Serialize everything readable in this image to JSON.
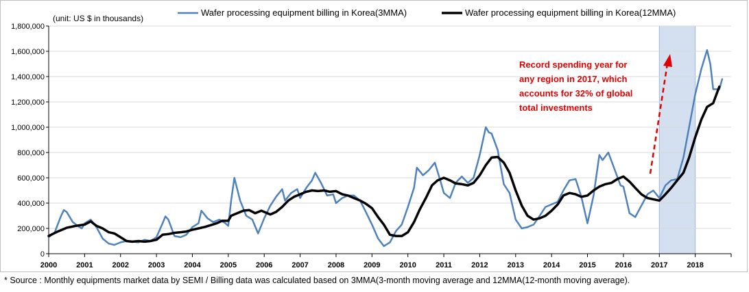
{
  "chart_data": {
    "type": "line",
    "unit_label": "(unit: US $ in thousands)",
    "xlabel": "",
    "ylabel": "",
    "ylim": [
      0,
      1800000
    ],
    "y_ticks": [
      0,
      200000,
      400000,
      600000,
      800000,
      1000000,
      1200000,
      1400000,
      1600000,
      1800000
    ],
    "y_tick_labels": [
      "0",
      "200,000",
      "400,000",
      "600,000",
      "800,000",
      "1,000,000",
      "1,200,000",
      "1,400,000",
      "1,600,000",
      "1,800,000"
    ],
    "xlim": [
      2000,
      2019
    ],
    "x_ticks": [
      2000,
      2001,
      2002,
      2003,
      2004,
      2005,
      2006,
      2007,
      2008,
      2009,
      2010,
      2011,
      2012,
      2013,
      2014,
      2015,
      2016,
      2017,
      2018
    ],
    "x_tick_labels": [
      "2000",
      "2001",
      "2002",
      "2003",
      "2004",
      "2005",
      "2006",
      "2007",
      "2008",
      "2009",
      "2010",
      "2011",
      "2012",
      "2013",
      "2014",
      "2015",
      "2016",
      "2017",
      "2018"
    ],
    "grid": "horizontal",
    "legend_position": "top",
    "highlight_region": [
      2017,
      2018
    ],
    "series": [
      {
        "name": "Wafer processing equipment billing in Korea(3MMA)",
        "color": "#4f81bd",
        "points": [
          [
            2000.0,
            130000
          ],
          [
            2000.17,
            170000
          ],
          [
            2000.33,
            290000
          ],
          [
            2000.42,
            345000
          ],
          [
            2000.5,
            330000
          ],
          [
            2000.67,
            250000
          ],
          [
            2000.83,
            215000
          ],
          [
            2000.92,
            200000
          ],
          [
            2001.0,
            240000
          ],
          [
            2001.17,
            270000
          ],
          [
            2001.33,
            210000
          ],
          [
            2001.5,
            120000
          ],
          [
            2001.67,
            80000
          ],
          [
            2001.83,
            70000
          ],
          [
            2002.0,
            90000
          ],
          [
            2002.17,
            100000
          ],
          [
            2002.33,
            95000
          ],
          [
            2002.5,
            90000
          ],
          [
            2002.67,
            110000
          ],
          [
            2002.83,
            100000
          ],
          [
            2003.0,
            130000
          ],
          [
            2003.17,
            240000
          ],
          [
            2003.25,
            295000
          ],
          [
            2003.33,
            270000
          ],
          [
            2003.5,
            140000
          ],
          [
            2003.67,
            130000
          ],
          [
            2003.83,
            150000
          ],
          [
            2004.0,
            210000
          ],
          [
            2004.17,
            240000
          ],
          [
            2004.25,
            340000
          ],
          [
            2004.42,
            280000
          ],
          [
            2004.58,
            250000
          ],
          [
            2004.75,
            270000
          ],
          [
            2004.92,
            240000
          ],
          [
            2005.0,
            220000
          ],
          [
            2005.08,
            420000
          ],
          [
            2005.17,
            600000
          ],
          [
            2005.33,
            420000
          ],
          [
            2005.5,
            300000
          ],
          [
            2005.67,
            270000
          ],
          [
            2005.83,
            160000
          ],
          [
            2006.0,
            280000
          ],
          [
            2006.17,
            380000
          ],
          [
            2006.33,
            450000
          ],
          [
            2006.5,
            510000
          ],
          [
            2006.58,
            420000
          ],
          [
            2006.75,
            480000
          ],
          [
            2006.92,
            510000
          ],
          [
            2007.0,
            440000
          ],
          [
            2007.17,
            520000
          ],
          [
            2007.33,
            580000
          ],
          [
            2007.42,
            640000
          ],
          [
            2007.58,
            560000
          ],
          [
            2007.75,
            460000
          ],
          [
            2007.92,
            470000
          ],
          [
            2008.0,
            400000
          ],
          [
            2008.17,
            440000
          ],
          [
            2008.33,
            460000
          ],
          [
            2008.5,
            460000
          ],
          [
            2008.67,
            420000
          ],
          [
            2008.83,
            330000
          ],
          [
            2009.0,
            230000
          ],
          [
            2009.17,
            120000
          ],
          [
            2009.33,
            60000
          ],
          [
            2009.5,
            90000
          ],
          [
            2009.67,
            180000
          ],
          [
            2009.83,
            230000
          ],
          [
            2010.0,
            370000
          ],
          [
            2010.17,
            520000
          ],
          [
            2010.25,
            680000
          ],
          [
            2010.42,
            620000
          ],
          [
            2010.58,
            660000
          ],
          [
            2010.75,
            720000
          ],
          [
            2010.92,
            560000
          ],
          [
            2011.0,
            480000
          ],
          [
            2011.17,
            440000
          ],
          [
            2011.33,
            560000
          ],
          [
            2011.5,
            610000
          ],
          [
            2011.67,
            560000
          ],
          [
            2011.83,
            600000
          ],
          [
            2012.0,
            780000
          ],
          [
            2012.17,
            1000000
          ],
          [
            2012.25,
            960000
          ],
          [
            2012.33,
            950000
          ],
          [
            2012.5,
            820000
          ],
          [
            2012.67,
            550000
          ],
          [
            2012.83,
            480000
          ],
          [
            2013.0,
            270000
          ],
          [
            2013.17,
            200000
          ],
          [
            2013.33,
            210000
          ],
          [
            2013.5,
            230000
          ],
          [
            2013.67,
            300000
          ],
          [
            2013.83,
            370000
          ],
          [
            2014.0,
            390000
          ],
          [
            2014.17,
            410000
          ],
          [
            2014.33,
            500000
          ],
          [
            2014.5,
            580000
          ],
          [
            2014.67,
            590000
          ],
          [
            2014.83,
            450000
          ],
          [
            2015.0,
            240000
          ],
          [
            2015.17,
            460000
          ],
          [
            2015.33,
            780000
          ],
          [
            2015.42,
            740000
          ],
          [
            2015.58,
            800000
          ],
          [
            2015.75,
            670000
          ],
          [
            2015.92,
            540000
          ],
          [
            2016.0,
            530000
          ],
          [
            2016.17,
            320000
          ],
          [
            2016.33,
            290000
          ],
          [
            2016.5,
            380000
          ],
          [
            2016.67,
            470000
          ],
          [
            2016.83,
            500000
          ],
          [
            2017.0,
            440000
          ],
          [
            2017.17,
            540000
          ],
          [
            2017.33,
            580000
          ],
          [
            2017.5,
            590000
          ],
          [
            2017.67,
            760000
          ],
          [
            2017.83,
            1000000
          ],
          [
            2018.0,
            1260000
          ],
          [
            2018.17,
            1460000
          ],
          [
            2018.33,
            1610000
          ],
          [
            2018.42,
            1500000
          ],
          [
            2018.5,
            1300000
          ],
          [
            2018.67,
            1300000
          ],
          [
            2018.75,
            1380000
          ]
        ]
      },
      {
        "name": "Wafer processing equipment billing in Korea(12MMA)",
        "color": "#000000",
        "points": [
          [
            2000.0,
            140000
          ],
          [
            2000.25,
            175000
          ],
          [
            2000.5,
            205000
          ],
          [
            2000.75,
            220000
          ],
          [
            2001.0,
            230000
          ],
          [
            2001.17,
            255000
          ],
          [
            2001.33,
            220000
          ],
          [
            2001.5,
            200000
          ],
          [
            2001.67,
            170000
          ],
          [
            2001.83,
            160000
          ],
          [
            2002.0,
            130000
          ],
          [
            2002.17,
            100000
          ],
          [
            2002.33,
            95000
          ],
          [
            2002.5,
            100000
          ],
          [
            2002.67,
            95000
          ],
          [
            2002.83,
            100000
          ],
          [
            2003.0,
            110000
          ],
          [
            2003.17,
            150000
          ],
          [
            2003.33,
            155000
          ],
          [
            2003.5,
            165000
          ],
          [
            2003.67,
            170000
          ],
          [
            2003.83,
            175000
          ],
          [
            2004.0,
            190000
          ],
          [
            2004.17,
            200000
          ],
          [
            2004.33,
            210000
          ],
          [
            2004.5,
            225000
          ],
          [
            2004.67,
            240000
          ],
          [
            2004.83,
            260000
          ],
          [
            2005.0,
            260000
          ],
          [
            2005.08,
            300000
          ],
          [
            2005.25,
            320000
          ],
          [
            2005.42,
            340000
          ],
          [
            2005.58,
            345000
          ],
          [
            2005.75,
            320000
          ],
          [
            2005.92,
            340000
          ],
          [
            2006.0,
            330000
          ],
          [
            2006.17,
            310000
          ],
          [
            2006.33,
            330000
          ],
          [
            2006.5,
            370000
          ],
          [
            2006.67,
            420000
          ],
          [
            2006.83,
            450000
          ],
          [
            2007.0,
            470000
          ],
          [
            2007.17,
            490000
          ],
          [
            2007.33,
            500000
          ],
          [
            2007.5,
            495000
          ],
          [
            2007.67,
            500000
          ],
          [
            2007.83,
            490000
          ],
          [
            2008.0,
            495000
          ],
          [
            2008.17,
            470000
          ],
          [
            2008.33,
            460000
          ],
          [
            2008.5,
            440000
          ],
          [
            2008.67,
            420000
          ],
          [
            2008.83,
            395000
          ],
          [
            2009.0,
            360000
          ],
          [
            2009.17,
            290000
          ],
          [
            2009.33,
            230000
          ],
          [
            2009.5,
            150000
          ],
          [
            2009.67,
            140000
          ],
          [
            2009.83,
            140000
          ],
          [
            2010.0,
            170000
          ],
          [
            2010.17,
            250000
          ],
          [
            2010.33,
            350000
          ],
          [
            2010.5,
            440000
          ],
          [
            2010.67,
            540000
          ],
          [
            2010.83,
            580000
          ],
          [
            2011.0,
            600000
          ],
          [
            2011.17,
            580000
          ],
          [
            2011.33,
            555000
          ],
          [
            2011.5,
            550000
          ],
          [
            2011.67,
            540000
          ],
          [
            2011.83,
            560000
          ],
          [
            2012.0,
            620000
          ],
          [
            2012.17,
            700000
          ],
          [
            2012.33,
            760000
          ],
          [
            2012.5,
            765000
          ],
          [
            2012.67,
            720000
          ],
          [
            2012.83,
            640000
          ],
          [
            2013.0,
            500000
          ],
          [
            2013.17,
            380000
          ],
          [
            2013.33,
            300000
          ],
          [
            2013.5,
            270000
          ],
          [
            2013.67,
            280000
          ],
          [
            2013.83,
            300000
          ],
          [
            2014.0,
            340000
          ],
          [
            2014.17,
            390000
          ],
          [
            2014.33,
            460000
          ],
          [
            2014.5,
            480000
          ],
          [
            2014.67,
            470000
          ],
          [
            2014.83,
            450000
          ],
          [
            2015.0,
            460000
          ],
          [
            2015.17,
            500000
          ],
          [
            2015.33,
            530000
          ],
          [
            2015.5,
            550000
          ],
          [
            2015.67,
            560000
          ],
          [
            2015.83,
            590000
          ],
          [
            2016.0,
            610000
          ],
          [
            2016.17,
            570000
          ],
          [
            2016.33,
            520000
          ],
          [
            2016.5,
            470000
          ],
          [
            2016.67,
            440000
          ],
          [
            2016.83,
            430000
          ],
          [
            2017.0,
            420000
          ],
          [
            2017.17,
            470000
          ],
          [
            2017.33,
            520000
          ],
          [
            2017.5,
            580000
          ],
          [
            2017.67,
            640000
          ],
          [
            2017.83,
            760000
          ],
          [
            2018.0,
            920000
          ],
          [
            2018.17,
            1060000
          ],
          [
            2018.33,
            1160000
          ],
          [
            2018.5,
            1190000
          ],
          [
            2018.67,
            1320000
          ]
        ]
      }
    ],
    "annotation": {
      "lines": [
        "Record spending year for",
        "any region in 2017,  which",
        "accounts for 32% of global",
        "total investments"
      ],
      "color": "#e00000"
    }
  },
  "footer": {
    "source": "* Source : Monthly equipments  market data by SEMI / Billing data was calculated based on 3MMA(3-month moving average and 12MMA(12-month moving average)."
  }
}
